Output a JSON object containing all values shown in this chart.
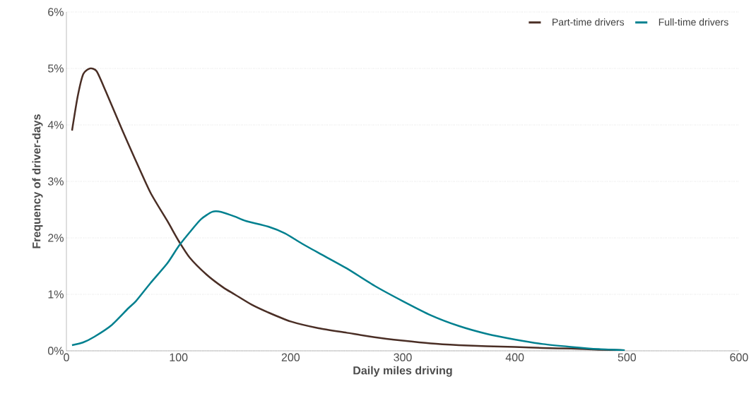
{
  "chart_data": {
    "type": "line",
    "xlabel": "Daily miles driving",
    "ylabel": "Frequency of driver-days",
    "xlim": [
      0,
      600
    ],
    "xticks": [
      0,
      100,
      200,
      300,
      400,
      500,
      600
    ],
    "ylim": [
      0,
      6
    ],
    "yticks": [
      {
        "value": 0,
        "label": "0%"
      },
      {
        "value": 1,
        "label": "1%"
      },
      {
        "value": 2,
        "label": "2%"
      },
      {
        "value": 3,
        "label": "3%"
      },
      {
        "value": 4,
        "label": "4%"
      },
      {
        "value": 5,
        "label": "5%"
      },
      {
        "value": 6,
        "label": "6%"
      }
    ],
    "grid": "y",
    "legend": "top right",
    "marker": "none",
    "line_style": "solid",
    "series": [
      {
        "name": "Part-time drivers",
        "color": "#4a2e25",
        "x": [
          5,
          10,
          15,
          21,
          27,
          35,
          50,
          60,
          75,
          90,
          100,
          110,
          125,
          140,
          150,
          165,
          180,
          200,
          225,
          250,
          275,
          300,
          325,
          350,
          375,
          400,
          425,
          450,
          475,
          498
        ],
        "values": [
          3.9,
          4.5,
          4.9,
          5.0,
          4.95,
          4.6,
          3.9,
          3.45,
          2.8,
          2.3,
          1.95,
          1.65,
          1.35,
          1.12,
          1.0,
          0.82,
          0.68,
          0.52,
          0.4,
          0.32,
          0.24,
          0.18,
          0.13,
          0.1,
          0.08,
          0.07,
          0.05,
          0.04,
          0.02,
          0.01
        ]
      },
      {
        "name": "Full-time drivers",
        "color": "#00808f",
        "x": [
          5,
          15,
          25,
          40,
          55,
          62,
          75,
          90,
          100,
          110,
          120,
          130,
          138,
          150,
          160,
          180,
          195,
          210,
          230,
          250,
          275,
          300,
          325,
          350,
          375,
          400,
          425,
          450,
          475,
          498
        ],
        "values": [
          0.1,
          0.15,
          0.25,
          0.45,
          0.75,
          0.88,
          1.2,
          1.55,
          1.85,
          2.1,
          2.33,
          2.46,
          2.46,
          2.38,
          2.3,
          2.2,
          2.08,
          1.9,
          1.68,
          1.46,
          1.15,
          0.88,
          0.63,
          0.44,
          0.3,
          0.2,
          0.12,
          0.07,
          0.03,
          0.01
        ]
      }
    ]
  }
}
